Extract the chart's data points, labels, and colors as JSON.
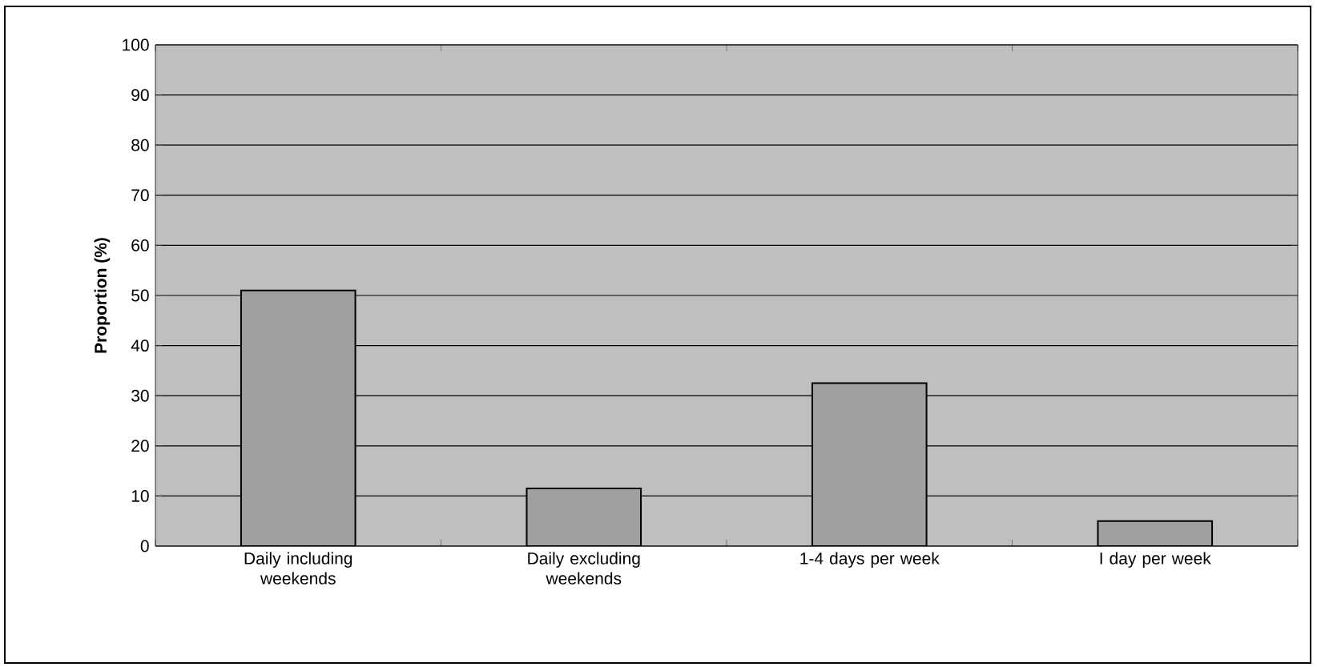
{
  "chart_data": {
    "type": "bar",
    "ylabel": "Proportion (%)",
    "categories": [
      "Daily including weekends",
      "Daily excluding weekends",
      "1-4 days per week",
      "I day per week"
    ],
    "values": [
      51,
      11.5,
      32.5,
      5
    ],
    "color": "#a0a0a0",
    "ylim": [
      0,
      100
    ],
    "yticks": [
      0,
      10,
      20,
      30,
      40,
      50,
      60,
      70,
      80,
      90,
      100
    ],
    "grid": "y"
  }
}
